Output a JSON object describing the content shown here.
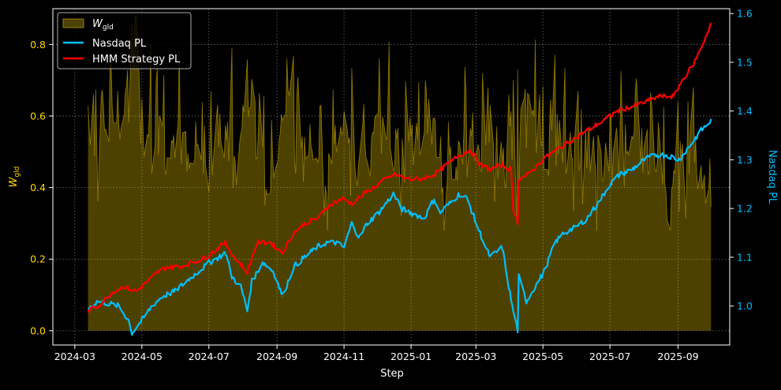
{
  "chart_data": {
    "type": "line",
    "xlabel": "Step",
    "ylabel_left": "W",
    "ylabel_left_sub": "gld",
    "ylabel_right": "Nasdaq PL",
    "x_ticks": [
      "2024-03",
      "2024-05",
      "2024-07",
      "2024-09",
      "2024-11",
      "2025-01",
      "2025-03",
      "2025-05",
      "2025-07",
      "2025-09"
    ],
    "x_range": [
      "2024-02-10",
      "2025-10-18"
    ],
    "left_ylim": [
      -0.04,
      0.9
    ],
    "left_ticks": [
      "0.0",
      "0.2",
      "0.4",
      "0.6",
      "0.8"
    ],
    "right_ylim": [
      0.92,
      1.61
    ],
    "right_ticks": [
      "1.0",
      "1.1",
      "1.2",
      "1.3",
      "1.4",
      "1.5",
      "1.6"
    ],
    "grid": true,
    "legend_position": "upper-left",
    "colors": {
      "gld": "#FFD700",
      "nasdaq": "#00BFFF",
      "hmm": "#FF0000",
      "background": "#000000",
      "axes": "#FFFFFF"
    },
    "series": [
      {
        "name": "W",
        "name_sub": "gld",
        "axis": "left",
        "style": "area",
        "points": [
          [
            "2024-03-13",
            0.63
          ],
          [
            "2024-03-20",
            0.48
          ],
          [
            "2024-03-27",
            0.62
          ],
          [
            "2024-04-03",
            0.57
          ],
          [
            "2024-04-10",
            0.55
          ],
          [
            "2024-04-17",
            0.64
          ],
          [
            "2024-04-24",
            0.78
          ],
          [
            "2024-05-01",
            0.55
          ],
          [
            "2024-05-08",
            0.48
          ],
          [
            "2024-05-15",
            0.58
          ],
          [
            "2024-05-22",
            0.52
          ],
          [
            "2024-05-29",
            0.46
          ],
          [
            "2024-06-05",
            0.54
          ],
          [
            "2024-06-12",
            0.5
          ],
          [
            "2024-06-19",
            0.56
          ],
          [
            "2024-06-26",
            0.48
          ],
          [
            "2024-07-03",
            0.44
          ],
          [
            "2024-07-10",
            0.58
          ],
          [
            "2024-07-17",
            0.52
          ],
          [
            "2024-07-24",
            0.45
          ],
          [
            "2024-07-31",
            0.5
          ],
          [
            "2024-08-07",
            0.62
          ],
          [
            "2024-08-14",
            0.55
          ],
          [
            "2024-08-21",
            0.42
          ],
          [
            "2024-08-28",
            0.48
          ],
          [
            "2024-09-04",
            0.56
          ],
          [
            "2024-09-11",
            0.68
          ],
          [
            "2024-09-18",
            0.52
          ],
          [
            "2024-09-25",
            0.46
          ],
          [
            "2024-10-02",
            0.58
          ],
          [
            "2024-10-09",
            0.5
          ],
          [
            "2024-10-16",
            0.44
          ],
          [
            "2024-10-23",
            0.52
          ],
          [
            "2024-10-30",
            0.6
          ],
          [
            "2024-11-06",
            0.5
          ],
          [
            "2024-11-13",
            0.46
          ],
          [
            "2024-11-20",
            0.45
          ],
          [
            "2024-11-27",
            0.52
          ],
          [
            "2024-12-04",
            0.56
          ],
          [
            "2024-12-11",
            0.6
          ],
          [
            "2024-12-18",
            0.5
          ],
          [
            "2024-12-25",
            0.46
          ],
          [
            "2025-01-01",
            0.54
          ],
          [
            "2025-01-08",
            0.5
          ],
          [
            "2025-01-15",
            0.62
          ],
          [
            "2025-01-22",
            0.55
          ],
          [
            "2025-01-29",
            0.46
          ],
          [
            "2025-02-05",
            0.52
          ],
          [
            "2025-02-12",
            0.44
          ],
          [
            "2025-02-19",
            0.48
          ],
          [
            "2025-02-26",
            0.55
          ],
          [
            "2025-03-05",
            0.5
          ],
          [
            "2025-03-12",
            0.58
          ],
          [
            "2025-03-19",
            0.52
          ],
          [
            "2025-03-26",
            0.45
          ],
          [
            "2025-04-02",
            0.54
          ],
          [
            "2025-04-09",
            0.58
          ],
          [
            "2025-04-16",
            0.6
          ],
          [
            "2025-04-23",
            0.55
          ],
          [
            "2025-04-30",
            0.52
          ],
          [
            "2025-05-07",
            0.5
          ],
          [
            "2025-05-14",
            0.54
          ],
          [
            "2025-05-21",
            0.5
          ],
          [
            "2025-05-28",
            0.48
          ],
          [
            "2025-06-04",
            0.52
          ],
          [
            "2025-06-11",
            0.5
          ],
          [
            "2025-06-18",
            0.46
          ],
          [
            "2025-06-25",
            0.48
          ],
          [
            "2025-07-02",
            0.52
          ],
          [
            "2025-07-09",
            0.5
          ],
          [
            "2025-07-16",
            0.47
          ],
          [
            "2025-07-23",
            0.52
          ],
          [
            "2025-07-30",
            0.5
          ],
          [
            "2025-08-06",
            0.48
          ],
          [
            "2025-08-13",
            0.52
          ],
          [
            "2025-08-20",
            0.47
          ],
          [
            "2025-08-27",
            0.45
          ],
          [
            "2025-09-03",
            0.5
          ],
          [
            "2025-09-10",
            0.47
          ],
          [
            "2025-09-17",
            0.44
          ],
          [
            "2025-09-24",
            0.42
          ],
          [
            "2025-10-01",
            0.4
          ]
        ],
        "spikes": [
          [
            "2024-03-18",
            0.66
          ],
          [
            "2024-04-02",
            0.74
          ],
          [
            "2024-04-22",
            0.86
          ],
          [
            "2024-05-09",
            0.8
          ],
          [
            "2024-06-04",
            0.78
          ],
          [
            "2024-06-22",
            0.69
          ],
          [
            "2024-07-22",
            0.79
          ],
          [
            "2024-07-28",
            0.36
          ],
          [
            "2024-08-12",
            0.64
          ],
          [
            "2024-08-24",
            0.34
          ],
          [
            "2024-09-10",
            0.76
          ],
          [
            "2024-10-05",
            0.7
          ],
          [
            "2024-10-20",
            0.36
          ],
          [
            "2024-11-02",
            0.66
          ],
          [
            "2024-12-08",
            0.68
          ],
          [
            "2025-01-14",
            0.7
          ],
          [
            "2025-01-30",
            0.4
          ],
          [
            "2025-02-20",
            0.67
          ],
          [
            "2025-03-12",
            0.68
          ],
          [
            "2025-03-18",
            0.36
          ],
          [
            "2025-04-04",
            0.7
          ],
          [
            "2025-04-07",
            0.3
          ],
          [
            "2025-04-28",
            0.66
          ],
          [
            "2025-05-20",
            0.64
          ],
          [
            "2025-07-01",
            0.6
          ],
          [
            "2025-08-10",
            0.62
          ],
          [
            "2025-09-12",
            0.56
          ]
        ]
      },
      {
        "name": "Nasdaq PL",
        "axis": "right",
        "style": "line",
        "points": [
          [
            "2024-03-13",
            0.995
          ],
          [
            "2024-03-22",
            1.01
          ],
          [
            "2024-04-01",
            1.005
          ],
          [
            "2024-04-10",
            1.0
          ],
          [
            "2024-04-19",
            0.97
          ],
          [
            "2024-04-22",
            0.945
          ],
          [
            "2024-05-01",
            0.97
          ],
          [
            "2024-05-10",
            1.0
          ],
          [
            "2024-05-20",
            1.02
          ],
          [
            "2024-05-31",
            1.03
          ],
          [
            "2024-06-10",
            1.05
          ],
          [
            "2024-06-21",
            1.07
          ],
          [
            "2024-07-02",
            1.09
          ],
          [
            "2024-07-10",
            1.1
          ],
          [
            "2024-07-16",
            1.11
          ],
          [
            "2024-07-22",
            1.06
          ],
          [
            "2024-07-30",
            1.04
          ],
          [
            "2024-08-05",
            0.99
          ],
          [
            "2024-08-09",
            1.05
          ],
          [
            "2024-08-19",
            1.09
          ],
          [
            "2024-08-29",
            1.07
          ],
          [
            "2024-09-06",
            1.02
          ],
          [
            "2024-09-16",
            1.08
          ],
          [
            "2024-09-26",
            1.1
          ],
          [
            "2024-10-07",
            1.12
          ],
          [
            "2024-10-16",
            1.13
          ],
          [
            "2024-10-25",
            1.13
          ],
          [
            "2024-11-01",
            1.12
          ],
          [
            "2024-11-08",
            1.17
          ],
          [
            "2024-11-15",
            1.14
          ],
          [
            "2024-11-22",
            1.17
          ],
          [
            "2024-12-02",
            1.19
          ],
          [
            "2024-12-16",
            1.23
          ],
          [
            "2024-12-23",
            1.2
          ],
          [
            "2025-01-02",
            1.19
          ],
          [
            "2025-01-13",
            1.18
          ],
          [
            "2025-01-22",
            1.22
          ],
          [
            "2025-01-27",
            1.19
          ],
          [
            "2025-02-05",
            1.21
          ],
          [
            "2025-02-14",
            1.23
          ],
          [
            "2025-02-21",
            1.22
          ],
          [
            "2025-03-03",
            1.16
          ],
          [
            "2025-03-10",
            1.12
          ],
          [
            "2025-03-14",
            1.1
          ],
          [
            "2025-03-25",
            1.12
          ],
          [
            "2025-04-03",
            1.0
          ],
          [
            "2025-04-08",
            0.95
          ],
          [
            "2025-04-09",
            1.06
          ],
          [
            "2025-04-16",
            1.01
          ],
          [
            "2025-04-24",
            1.04
          ],
          [
            "2025-05-02",
            1.07
          ],
          [
            "2025-05-12",
            1.13
          ],
          [
            "2025-05-20",
            1.15
          ],
          [
            "2025-05-30",
            1.16
          ],
          [
            "2025-06-10",
            1.18
          ],
          [
            "2025-06-20",
            1.21
          ],
          [
            "2025-07-01",
            1.25
          ],
          [
            "2025-07-10",
            1.27
          ],
          [
            "2025-07-21",
            1.28
          ],
          [
            "2025-08-01",
            1.3
          ],
          [
            "2025-08-12",
            1.31
          ],
          [
            "2025-08-22",
            1.31
          ],
          [
            "2025-09-02",
            1.3
          ],
          [
            "2025-09-12",
            1.33
          ],
          [
            "2025-09-22",
            1.36
          ],
          [
            "2025-10-01",
            1.38
          ]
        ]
      },
      {
        "name": "HMM Strategy PL",
        "axis": "right",
        "style": "line",
        "points": [
          [
            "2024-03-13",
            0.99
          ],
          [
            "2024-03-22",
            1.0
          ],
          [
            "2024-04-05",
            1.03
          ],
          [
            "2024-04-15",
            1.04
          ],
          [
            "2024-04-26",
            1.03
          ],
          [
            "2024-05-06",
            1.05
          ],
          [
            "2024-05-16",
            1.07
          ],
          [
            "2024-05-24",
            1.08
          ],
          [
            "2024-06-05",
            1.08
          ],
          [
            "2024-06-17",
            1.09
          ],
          [
            "2024-06-28",
            1.1
          ],
          [
            "2024-07-10",
            1.12
          ],
          [
            "2024-07-16",
            1.13
          ],
          [
            "2024-07-24",
            1.1
          ],
          [
            "2024-08-05",
            1.07
          ],
          [
            "2024-08-14",
            1.13
          ],
          [
            "2024-08-26",
            1.13
          ],
          [
            "2024-09-06",
            1.11
          ],
          [
            "2024-09-16",
            1.15
          ],
          [
            "2024-09-27",
            1.17
          ],
          [
            "2024-10-08",
            1.18
          ],
          [
            "2024-10-20",
            1.21
          ],
          [
            "2024-10-31",
            1.22
          ],
          [
            "2024-11-08",
            1.21
          ],
          [
            "2024-11-19",
            1.23
          ],
          [
            "2024-12-02",
            1.25
          ],
          [
            "2024-12-16",
            1.27
          ],
          [
            "2024-12-30",
            1.26
          ],
          [
            "2025-01-10",
            1.26
          ],
          [
            "2025-01-22",
            1.27
          ],
          [
            "2025-02-03",
            1.29
          ],
          [
            "2025-02-14",
            1.31
          ],
          [
            "2025-02-24",
            1.32
          ],
          [
            "2025-03-05",
            1.29
          ],
          [
            "2025-03-14",
            1.28
          ],
          [
            "2025-03-25",
            1.29
          ],
          [
            "2025-04-02",
            1.28
          ],
          [
            "2025-04-04",
            1.2
          ],
          [
            "2025-04-08",
            1.17
          ],
          [
            "2025-04-09",
            1.26
          ],
          [
            "2025-04-18",
            1.27
          ],
          [
            "2025-05-01",
            1.3
          ],
          [
            "2025-05-13",
            1.32
          ],
          [
            "2025-05-27",
            1.34
          ],
          [
            "2025-06-10",
            1.36
          ],
          [
            "2025-06-25",
            1.38
          ],
          [
            "2025-07-08",
            1.4
          ],
          [
            "2025-07-22",
            1.41
          ],
          [
            "2025-08-04",
            1.42
          ],
          [
            "2025-08-14",
            1.43
          ],
          [
            "2025-08-28",
            1.43
          ],
          [
            "2025-09-04",
            1.46
          ],
          [
            "2025-09-16",
            1.5
          ],
          [
            "2025-09-24",
            1.54
          ],
          [
            "2025-10-01",
            1.58
          ]
        ]
      }
    ]
  }
}
